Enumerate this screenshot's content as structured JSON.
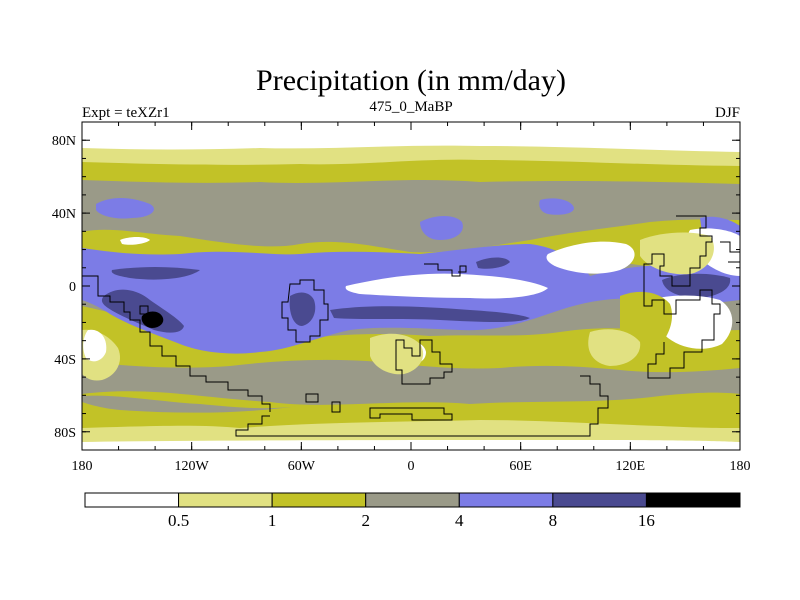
{
  "chart_data": {
    "type": "heatmap",
    "title": "Precipitation (in mm/day)",
    "left_label": "Expt = teXZr1",
    "center_label": "475_0_MaBP",
    "right_label": "DJF",
    "x_axis": {
      "range": [
        -180,
        180
      ],
      "ticks": [
        {
          "value": -180,
          "label": "180"
        },
        {
          "value": -120,
          "label": "120W"
        },
        {
          "value": -60,
          "label": "60W"
        },
        {
          "value": 0,
          "label": "0"
        },
        {
          "value": 60,
          "label": "60E"
        },
        {
          "value": 120,
          "label": "120E"
        },
        {
          "value": 180,
          "label": "180"
        }
      ]
    },
    "y_axis": {
      "range": [
        -90,
        90
      ],
      "ticks": [
        {
          "value": 80,
          "label": "80N"
        },
        {
          "value": 40,
          "label": "40N"
        },
        {
          "value": 0,
          "label": "0"
        },
        {
          "value": -40,
          "label": "40S"
        },
        {
          "value": -80,
          "label": "80S"
        }
      ]
    },
    "levels": [
      0.5,
      1,
      2,
      4,
      8,
      16
    ],
    "level_labels": [
      "0.5",
      "1",
      "2",
      "4",
      "8",
      "16"
    ],
    "colors": [
      "#ffffff",
      "#e1e182",
      "#c2c227",
      "#9a9a88",
      "#7c7ce6",
      "#4a4a90",
      "#000000"
    ],
    "coastline_color": "#000000"
  }
}
